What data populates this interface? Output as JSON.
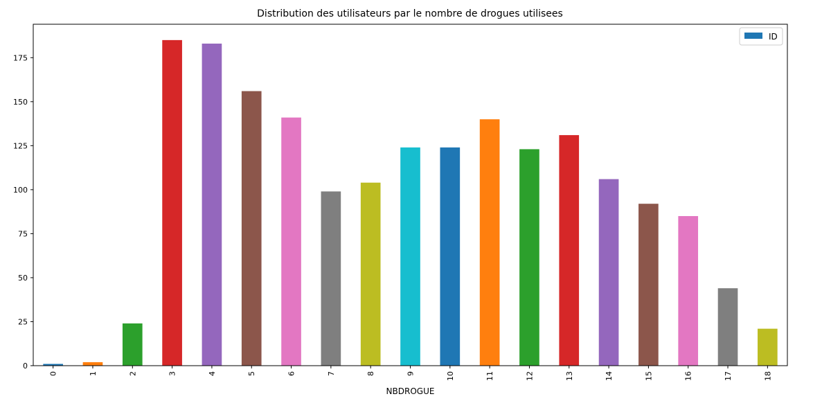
{
  "chart_data": {
    "type": "bar",
    "title": "Distribution des utilisateurs par le nombre de drogues utilisees",
    "xlabel": "NBDROGUE",
    "ylabel": "",
    "categories": [
      "0",
      "1",
      "2",
      "3",
      "4",
      "5",
      "6",
      "7",
      "8",
      "9",
      "10",
      "11",
      "12",
      "13",
      "14",
      "15",
      "16",
      "17",
      "18"
    ],
    "series": [
      {
        "name": "ID",
        "values": [
          1,
          2,
          24,
          185,
          183,
          156,
          141,
          99,
          104,
          124,
          124,
          140,
          123,
          131,
          106,
          92,
          85,
          44,
          21
        ]
      }
    ],
    "ylim": [
      0,
      194
    ],
    "yticks": [
      0,
      25,
      50,
      75,
      100,
      125,
      150,
      175
    ],
    "grid": false,
    "legend_position": "top-right",
    "colors": [
      "#1f77b4",
      "#ff7f0e",
      "#2ca02c",
      "#d62728",
      "#9467bd",
      "#8c564b",
      "#e377c2",
      "#7f7f7f",
      "#bcbd22",
      "#17becf"
    ],
    "legend_color": "#1f77b4"
  }
}
